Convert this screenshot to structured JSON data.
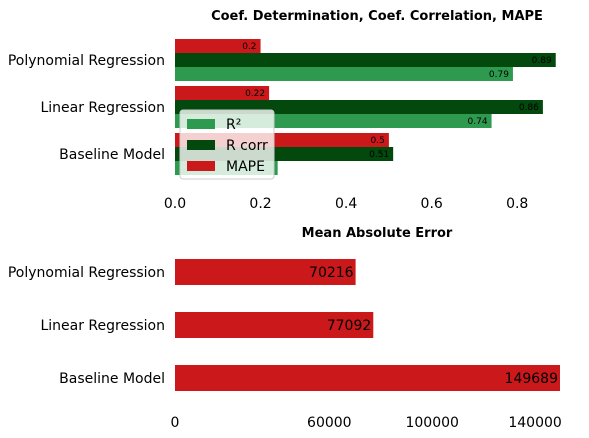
{
  "chart_data": [
    {
      "type": "bar",
      "orientation": "horizontal",
      "title": "Coef. Determination, Coef. Correlation, MAPE",
      "categories": [
        "Polynomial Regression",
        "Linear Regression",
        "Baseline Model"
      ],
      "series": [
        {
          "name": "R²",
          "color": "#2e9a50",
          "values": [
            0.79,
            0.74,
            0.24
          ],
          "labels": [
            "0.79",
            "0.74",
            ""
          ]
        },
        {
          "name": "R corr",
          "color": "#03480c",
          "values": [
            0.89,
            0.86,
            0.51
          ],
          "labels": [
            "0.89",
            "0.86",
            "0.51"
          ]
        },
        {
          "name": "MAPE",
          "color": "#cb181b",
          "values": [
            0.2,
            0.22,
            0.5
          ],
          "labels": [
            "0.2",
            "0.22",
            "0.5"
          ]
        }
      ],
      "xlim": [
        0,
        0.9
      ],
      "xticks": [
        "0.0",
        "0.2",
        "0.4",
        "0.6",
        "0.8"
      ],
      "xtick_values": [
        0,
        0.2,
        0.4,
        0.6,
        0.8
      ],
      "grid": false,
      "legend_position": "lower-left"
    },
    {
      "type": "bar",
      "orientation": "horizontal",
      "title": "Mean Absolute Error",
      "categories": [
        "Polynomial Regression",
        "Linear Regression",
        "Baseline Model"
      ],
      "series": [
        {
          "name": "MAE",
          "color": "#cb181b",
          "values": [
            70216,
            77092,
            149689
          ],
          "labels": [
            "70216",
            "77092",
            "149689"
          ]
        }
      ],
      "xlim": [
        0,
        150000
      ],
      "xticks": [
        "0",
        "60000",
        "100000",
        "140000"
      ],
      "xtick_values": [
        0,
        60000,
        100000,
        140000
      ],
      "grid": false
    }
  ]
}
